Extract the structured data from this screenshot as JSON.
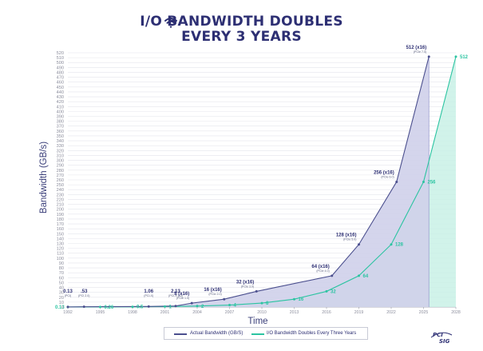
{
  "header": {
    "title_line1": "I/O BANDWIDTH DOUBLES",
    "title_line2": "EVERY 3 YEARS",
    "icon": "wifi-icon"
  },
  "colors": {
    "actual": "#4b4f8e",
    "actual_fill": "#cfd0ea",
    "projected": "#2bc4a1",
    "projected_fill": "#c9f1e6"
  },
  "legend": {
    "actual": "Actual Bandwidth (GB/S)",
    "projected": "I/O Bandwidth Doubles Every Three Years"
  },
  "logo": {
    "line1": "PCI",
    "line2": "SIG"
  },
  "chart_data": {
    "type": "area",
    "ylabel": "Bandwidth (GB/s)",
    "xlabel": "Time",
    "ylim": [
      0,
      520
    ],
    "xlim": [
      1992,
      2028
    ],
    "yticks": [
      0,
      10,
      20,
      30,
      40,
      50,
      60,
      70,
      80,
      90,
      100,
      110,
      120,
      130,
      140,
      150,
      160,
      170,
      180,
      190,
      200,
      210,
      220,
      230,
      240,
      250,
      260,
      270,
      280,
      290,
      300,
      310,
      320,
      330,
      340,
      350,
      360,
      370,
      380,
      390,
      400,
      410,
      420,
      430,
      440,
      450,
      460,
      470,
      480,
      490,
      500,
      510,
      520
    ],
    "xticks": [
      1992,
      1995,
      1998,
      2001,
      2004,
      2007,
      2010,
      2013,
      2016,
      2019,
      2022,
      2025,
      2028
    ],
    "series": [
      {
        "name": "Actual Bandwidth (GB/S)",
        "points": [
          {
            "x": 1992,
            "y": 0.13
          },
          {
            "x": 1993.5,
            "y": 0.53
          },
          {
            "x": 1999.5,
            "y": 1.06
          },
          {
            "x": 2002,
            "y": 2.13
          },
          {
            "x": 2003.5,
            "y": 8
          },
          {
            "x": 2006.5,
            "y": 16
          },
          {
            "x": 2009.5,
            "y": 32
          },
          {
            "x": 2016.5,
            "y": 64
          },
          {
            "x": 2019,
            "y": 128
          },
          {
            "x": 2022.5,
            "y": 256
          },
          {
            "x": 2025.5,
            "y": 512
          }
        ],
        "labels": [
          {
            "x": 1992,
            "y": 0.13,
            "text": "0.13",
            "sub": "(PCI)"
          },
          {
            "x": 1993.5,
            "y": 0.53,
            "text": ".53",
            "sub": "(PCI 2.0)"
          },
          {
            "x": 1999.5,
            "y": 1.06,
            "text": "1.06",
            "sub": "(PCI-X)"
          },
          {
            "x": 2002,
            "y": 2.13,
            "text": "2.13",
            "sub": "(PCI-X 2.0)"
          },
          {
            "x": 2003.5,
            "y": 8,
            "text": "8 (x16)",
            "sub": "(PCIe 1.0)"
          },
          {
            "x": 2006.5,
            "y": 16,
            "text": "16 (x16)",
            "sub": "(PCIe 2.0)"
          },
          {
            "x": 2009.5,
            "y": 32,
            "text": "32 (x16)",
            "sub": "(PCIe 3.0)"
          },
          {
            "x": 2016.5,
            "y": 64,
            "text": "64 (x16)",
            "sub": "(PCIe 4.0)"
          },
          {
            "x": 2019,
            "y": 128,
            "text": "128 (x16)",
            "sub": "(PCIe 5.0)"
          },
          {
            "x": 2022.5,
            "y": 256,
            "text": "256 (x16)",
            "sub": "(PCIe 6.0)"
          },
          {
            "x": 2025.5,
            "y": 512,
            "text": "512 (x16)",
            "sub": "(PCIe 7.0)"
          }
        ]
      },
      {
        "name": "I/O Bandwidth Doubles Every Three Years",
        "points": [
          {
            "x": 1992,
            "y": 0.13
          },
          {
            "x": 1995,
            "y": 0.26
          },
          {
            "x": 1998,
            "y": 0.5
          },
          {
            "x": 2001,
            "y": 1
          },
          {
            "x": 2004,
            "y": 2
          },
          {
            "x": 2007,
            "y": 4
          },
          {
            "x": 2010,
            "y": 8
          },
          {
            "x": 2013,
            "y": 16
          },
          {
            "x": 2016,
            "y": 32
          },
          {
            "x": 2019,
            "y": 64
          },
          {
            "x": 2022,
            "y": 128
          },
          {
            "x": 2025,
            "y": 256
          },
          {
            "x": 2028,
            "y": 512
          }
        ],
        "labels": [
          "0.13",
          "0.26",
          "0.5",
          "1",
          "2",
          "4",
          "8",
          "16",
          "32",
          "64",
          "128",
          "256",
          "512"
        ]
      }
    ]
  }
}
